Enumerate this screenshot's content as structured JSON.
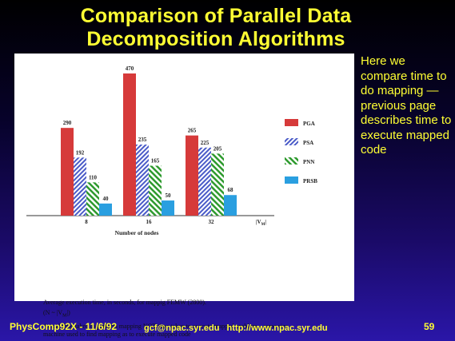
{
  "slide": {
    "title_line1": "Comparison of Parallel Data",
    "title_line2": "Decomposition Algorithms",
    "side_note": "Here we compare time to do mapping — previous page describes time to execute mapped code",
    "footer_left": "PhysComp92X - 11/6/92",
    "footer_mid": "gcf@npac.syr.edu http://www.npac.syr.edu",
    "footer_right": "59"
  },
  "figure": {
    "caption_line1": "Average execution time, in seconds, for mappig FEMW (2800).",
    "caption_line2": "(N ~ |V",
    "caption_line2_sub": "M",
    "caption_line2_end": "|)",
    "caption_line3": "Actual time taken to perform mapping NOT time taken to execute mapped problem—same size machine used to find mapping as to execute mapped code"
  },
  "chart_data": {
    "type": "bar",
    "categories": [
      "8",
      "16",
      "32"
    ],
    "series": [
      {
        "name": "PGA",
        "values": [
          290,
          470,
          265
        ],
        "color": "#d63a3a",
        "pattern": "solid"
      },
      {
        "name": "PSA",
        "values": [
          192,
          235,
          225
        ],
        "color": "#4a5bc8",
        "pattern": "diagonal-hatch"
      },
      {
        "name": "PNN",
        "values": [
          110,
          165,
          205
        ],
        "color": "#2e9a2e",
        "pattern": "diagonal-hatch"
      },
      {
        "name": "PRSB",
        "values": [
          40,
          50,
          68
        ],
        "color": "#2a9fe0",
        "pattern": "solid"
      }
    ],
    "xlabel": "Number of nodes",
    "x_axis_tag": "|V",
    "x_axis_tag_sub": "M",
    "x_axis_tag_end": "|",
    "ylabel": "",
    "ylim": [
      0,
      470
    ],
    "grid": false,
    "legend_position": "right"
  }
}
